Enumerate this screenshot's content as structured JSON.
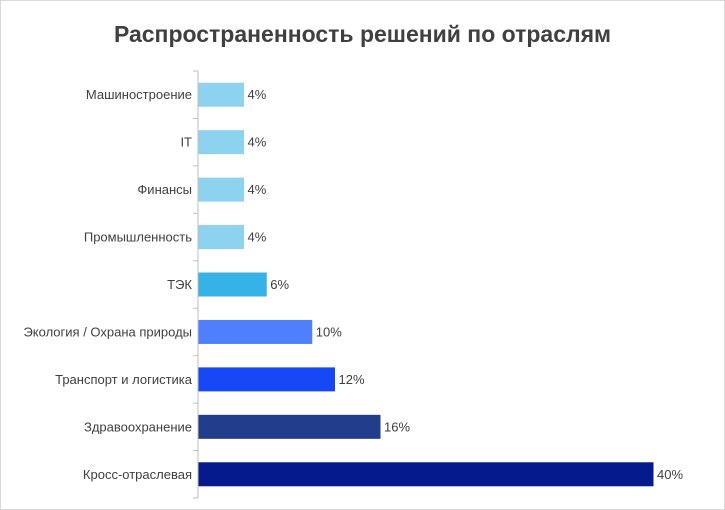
{
  "chart_data": {
    "type": "bar",
    "orientation": "horizontal",
    "title": "Распространенность решений по отраслям",
    "value_suffix": "%",
    "xlim": [
      0,
      40
    ],
    "grid": false,
    "legend": "none",
    "categories": [
      "Машиностроение",
      "IT",
      "Финансы",
      "Промышленность",
      "ТЭК",
      "Экология / Охрана природы",
      "Транспорт и логистика",
      "Здравоохранение",
      "Кросс-отраслевая"
    ],
    "values": [
      4,
      4,
      4,
      4,
      6,
      10,
      12,
      16,
      40
    ],
    "value_labels": [
      "4%",
      "4%",
      "4%",
      "4%",
      "6%",
      "10%",
      "12%",
      "16%",
      "40%"
    ],
    "colors": [
      "#8dd3ef",
      "#8dd3ef",
      "#8dd3ef",
      "#8dd3ef",
      "#36b3e6",
      "#4f7fff",
      "#1648f5",
      "#203e8c",
      "#051a8c"
    ],
    "axis_color": "#bfbfbf",
    "text_color": "#404040"
  }
}
